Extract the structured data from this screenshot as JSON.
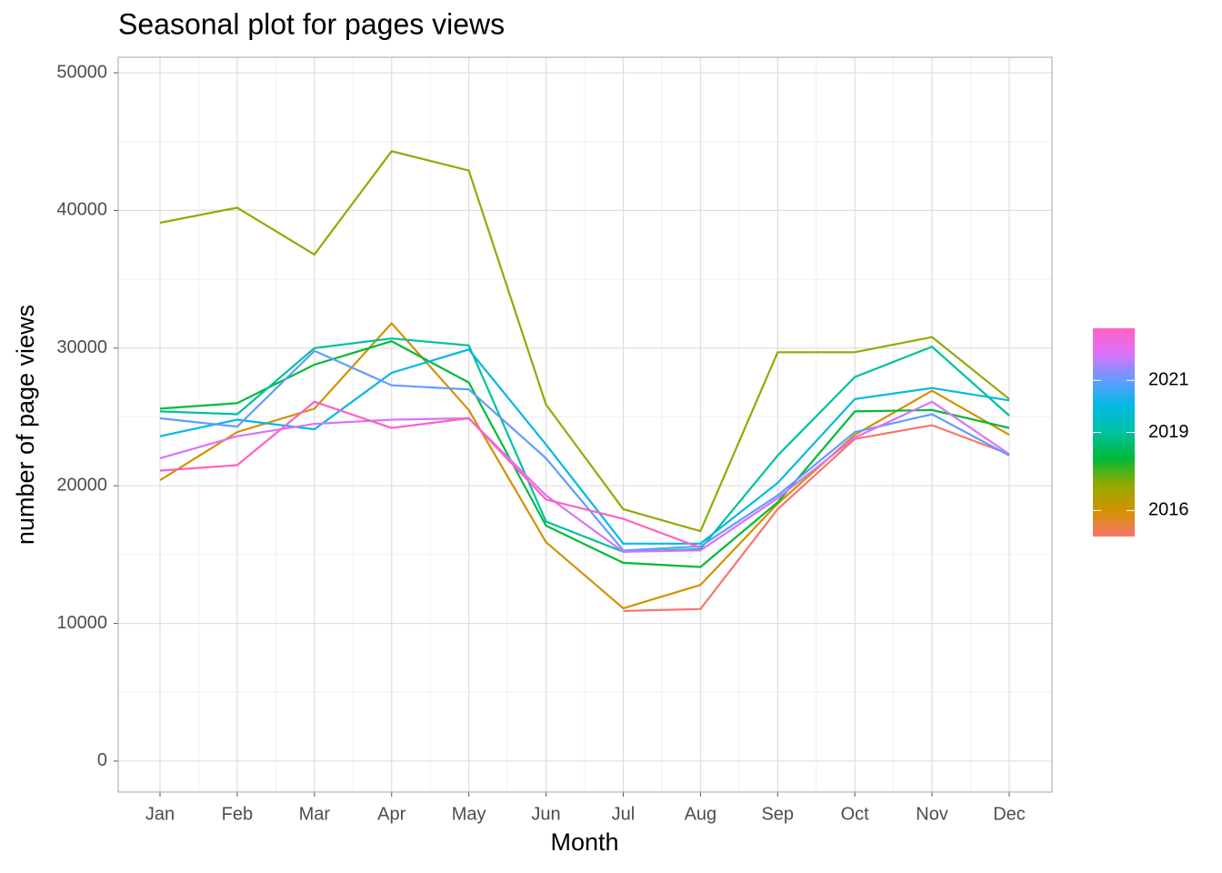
{
  "chart_data": {
    "type": "line",
    "title": "Seasonal plot for pages views",
    "x_label": "Month",
    "y_label": "number of page views",
    "categories": [
      "Jan",
      "Feb",
      "Mar",
      "Apr",
      "May",
      "Jun",
      "Jul",
      "Aug",
      "Sep",
      "Oct",
      "Nov",
      "Dec"
    ],
    "ylim": [
      -2250,
      51125
    ],
    "yticks": [
      0,
      10000,
      20000,
      30000,
      40000,
      50000
    ],
    "grid": true,
    "legend_position": "right",
    "legend_ticks": [
      2016,
      2019,
      2021
    ],
    "legend_lim": [
      2015,
      2023
    ],
    "series": [
      {
        "color": "#F8766D",
        "values": [
          null,
          null,
          null,
          null,
          null,
          null,
          10900,
          11050,
          18300,
          23400,
          24400,
          22300
        ]
      },
      {
        "color": "#D39200",
        "values": [
          20400,
          23900,
          25600,
          31800,
          25500,
          15900,
          11100,
          12800,
          18700,
          23700,
          26900,
          23700
        ]
      },
      {
        "color": "#93AA00",
        "values": [
          39100,
          40200,
          36800,
          44300,
          42900,
          25900,
          18300,
          16700,
          29700,
          29700,
          30800,
          26300
        ]
      },
      {
        "color": "#00BA38",
        "values": [
          25600,
          26000,
          28800,
          30500,
          27500,
          17100,
          14400,
          14100,
          18800,
          25400,
          25500,
          24200
        ]
      },
      {
        "color": "#00C19F",
        "values": [
          25400,
          25200,
          30000,
          30700,
          30200,
          17400,
          15200,
          15400,
          22200,
          27900,
          30100,
          25100
        ]
      },
      {
        "color": "#00B9E3",
        "values": [
          23600,
          24800,
          24100,
          28200,
          29900,
          23000,
          15800,
          15800,
          20200,
          26300,
          27100,
          26200
        ]
      },
      {
        "color": "#619CFF",
        "values": [
          24900,
          24300,
          29800,
          27300,
          27000,
          22000,
          15300,
          15600,
          19300,
          23900,
          25200,
          22200
        ]
      },
      {
        "color": "#DB72FB",
        "values": [
          22000,
          23600,
          24500,
          24800,
          24900,
          19300,
          15200,
          15300,
          19100,
          23500,
          26100,
          22300
        ]
      },
      {
        "color": "#FF61C3",
        "values": [
          21100,
          21500,
          26100,
          24200,
          24900,
          19000,
          17600,
          15500,
          null,
          null,
          null,
          null
        ]
      }
    ]
  }
}
